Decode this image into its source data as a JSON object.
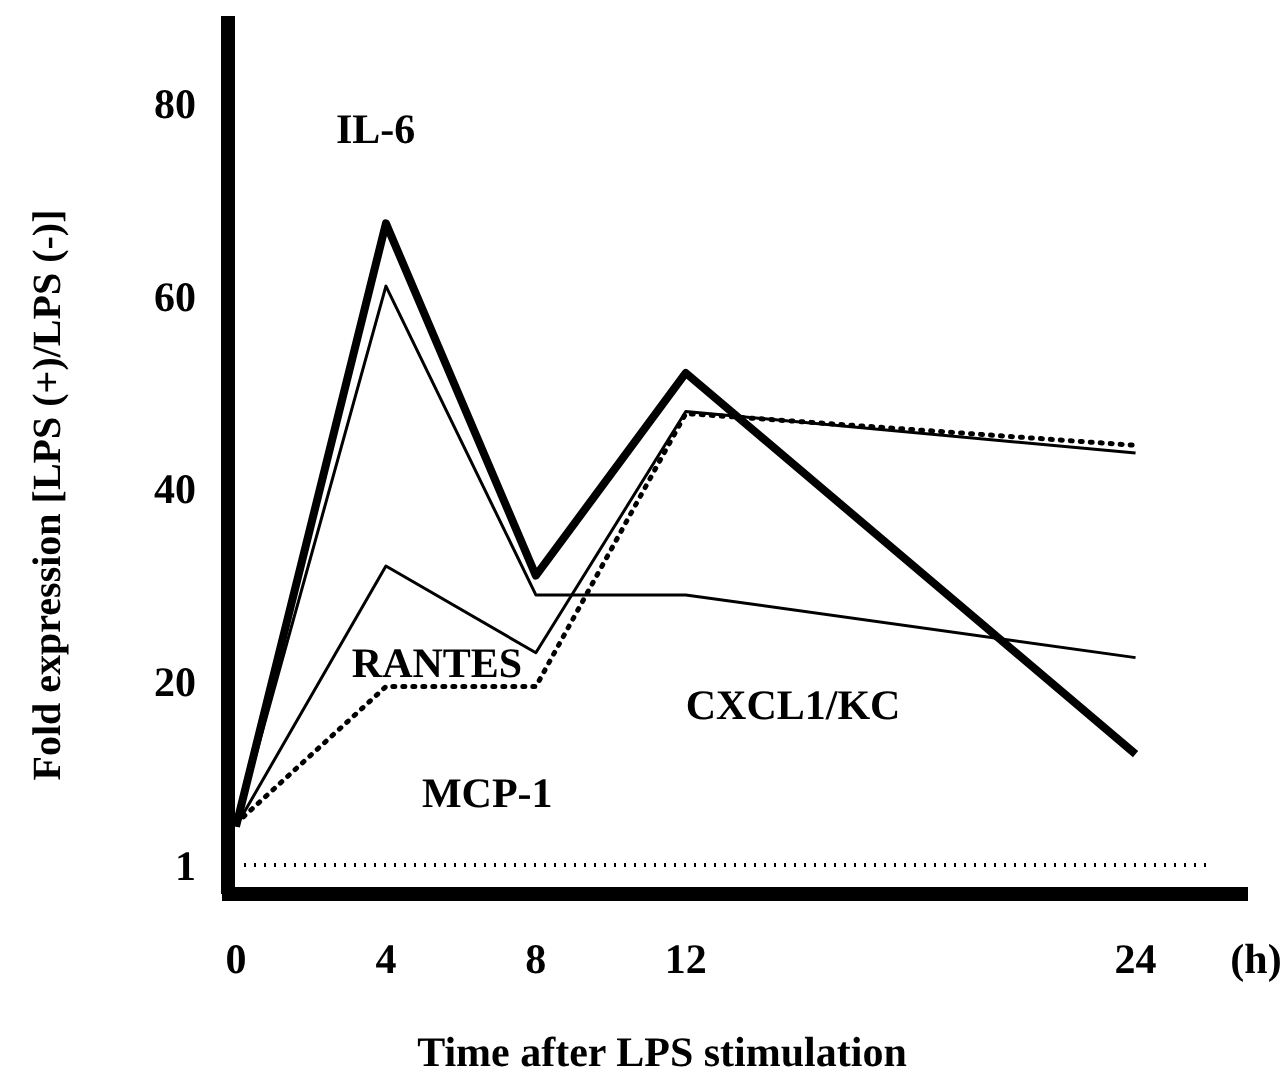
{
  "chart_data": {
    "type": "line",
    "xlabel": "Time after LPS stimulation",
    "ylabel": "Fold expression [LPS (+)/LPS (-)]",
    "x": [
      0,
      4,
      8,
      12,
      24
    ],
    "xlim": [
      0,
      27
    ],
    "xticks": [
      0,
      4,
      8,
      12,
      24
    ],
    "ylim": [
      -2,
      89
    ],
    "yticks": [
      1,
      20,
      40,
      60,
      80
    ],
    "series": [
      {
        "name": "IL-6",
        "color": "#000000",
        "values": [
          5,
          67.5,
          31,
          52,
          12.5
        ],
        "line_style": "solid"
      },
      {
        "name": "CXCL1/KC",
        "color": "#000000",
        "values": [
          5,
          61,
          29,
          29,
          22.5
        ],
        "line_style": "solid"
      },
      {
        "name": "RANTES",
        "color": "#000000",
        "values": [
          5,
          32,
          23,
          48,
          43.7
        ],
        "line_style": "solid"
      },
      {
        "name": "MCP-1",
        "color": "#000000",
        "values": [
          5.3,
          19.5,
          19.5,
          47.8,
          44.5
        ],
        "line_style": "dotted"
      }
    ],
    "ref_lines": [
      {
        "axis": "y",
        "value": 1,
        "line_style": "dotted",
        "color": "#000000"
      }
    ],
    "annotations": [
      "(h)"
    ],
    "grid": false,
    "legend": false,
    "marker": "none"
  }
}
